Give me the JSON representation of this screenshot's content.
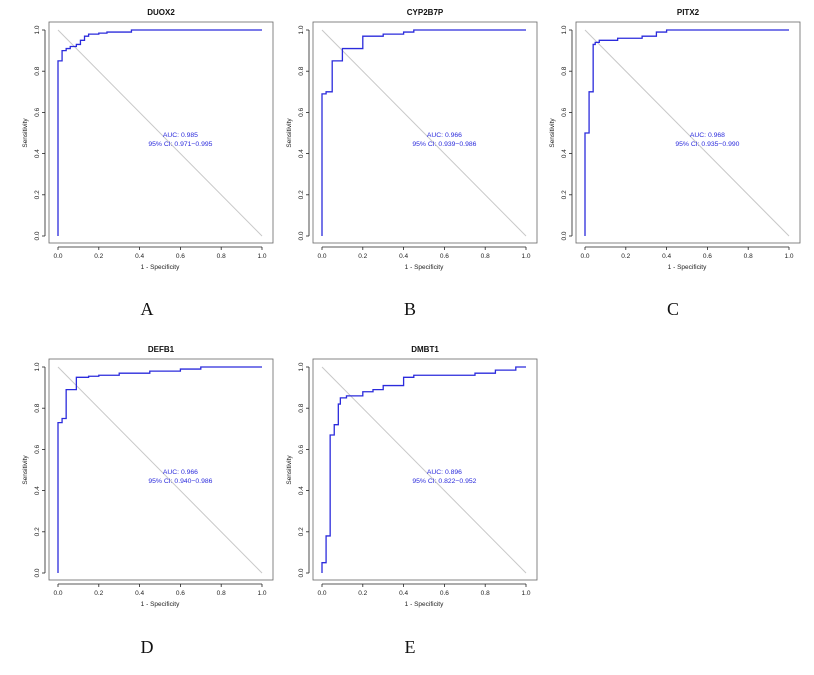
{
  "figure": {
    "letters": [
      "A",
      "B",
      "C",
      "D",
      "E"
    ]
  },
  "colors": {
    "roc_line": "#2b2bdc",
    "diagonal": "#c8c8c8",
    "annotation": "#2b2bdc",
    "axis": "#222222",
    "box": "#666666"
  },
  "chart_data": [
    {
      "type": "line",
      "title": "DUOX2",
      "xlabel": "1 - Specificity",
      "ylabel": "Sensitivity",
      "xlim": [
        0,
        1
      ],
      "ylim": [
        0,
        1
      ],
      "xticks": [
        "0.0",
        "0.2",
        "0.4",
        "0.6",
        "0.8",
        "1.0"
      ],
      "yticks": [
        "0.0",
        "0.2",
        "0.4",
        "0.6",
        "0.8",
        "1.0"
      ],
      "auc_label": "AUC: 0.985",
      "ci_label": "95% CI: 0.971−0.995",
      "series": [
        {
          "name": "ROC",
          "x": [
            0,
            0,
            0.02,
            0.02,
            0.04,
            0.04,
            0.06,
            0.06,
            0.09,
            0.09,
            0.11,
            0.11,
            0.13,
            0.13,
            0.15,
            0.15,
            0.2,
            0.2,
            0.24,
            0.24,
            0.36,
            0.36,
            1.0
          ],
          "y": [
            0,
            0.85,
            0.85,
            0.9,
            0.9,
            0.91,
            0.91,
            0.92,
            0.92,
            0.93,
            0.93,
            0.95,
            0.95,
            0.97,
            0.97,
            0.98,
            0.98,
            0.985,
            0.985,
            0.99,
            0.99,
            1.0,
            1.0
          ]
        }
      ]
    },
    {
      "type": "line",
      "title": "CYP2B7P",
      "xlabel": "1 - Specificity",
      "ylabel": "Sensitivity",
      "xlim": [
        0,
        1
      ],
      "ylim": [
        0,
        1
      ],
      "xticks": [
        "0.0",
        "0.2",
        "0.4",
        "0.6",
        "0.8",
        "1.0"
      ],
      "yticks": [
        "0.0",
        "0.2",
        "0.4",
        "0.6",
        "0.8",
        "1.0"
      ],
      "auc_label": "AUC: 0.966",
      "ci_label": "95% CI: 0.939−0.986",
      "series": [
        {
          "name": "ROC",
          "x": [
            0,
            0,
            0.02,
            0.02,
            0.05,
            0.05,
            0.1,
            0.1,
            0.2,
            0.2,
            0.3,
            0.3,
            0.4,
            0.4,
            0.45,
            0.45,
            1.0
          ],
          "y": [
            0,
            0.69,
            0.69,
            0.7,
            0.7,
            0.85,
            0.85,
            0.91,
            0.91,
            0.97,
            0.97,
            0.98,
            0.98,
            0.99,
            0.99,
            1.0,
            1.0
          ]
        }
      ]
    },
    {
      "type": "line",
      "title": "PITX2",
      "xlabel": "1 - Specificity",
      "ylabel": "Sensitivity",
      "xlim": [
        0,
        1
      ],
      "ylim": [
        0,
        1
      ],
      "xticks": [
        "0.0",
        "0.2",
        "0.4",
        "0.6",
        "0.8",
        "1.0"
      ],
      "yticks": [
        "0.0",
        "0.2",
        "0.4",
        "0.6",
        "0.8",
        "1.0"
      ],
      "auc_label": "AUC: 0.968",
      "ci_label": "95% CI: 0.935−0.990",
      "series": [
        {
          "name": "ROC",
          "x": [
            0,
            0,
            0.02,
            0.02,
            0.04,
            0.04,
            0.05,
            0.05,
            0.07,
            0.07,
            0.16,
            0.16,
            0.28,
            0.28,
            0.35,
            0.35,
            0.4,
            0.4,
            1.0
          ],
          "y": [
            0,
            0.5,
            0.5,
            0.7,
            0.7,
            0.93,
            0.93,
            0.94,
            0.94,
            0.95,
            0.95,
            0.96,
            0.96,
            0.97,
            0.97,
            0.99,
            0.99,
            1.0,
            1.0
          ]
        }
      ]
    },
    {
      "type": "line",
      "title": "DEFB1",
      "xlabel": "1 - Specificity",
      "ylabel": "Sensitivity",
      "xlim": [
        0,
        1
      ],
      "ylim": [
        0,
        1
      ],
      "xticks": [
        "0.0",
        "0.2",
        "0.4",
        "0.6",
        "0.8",
        "1.0"
      ],
      "yticks": [
        "0.0",
        "0.2",
        "0.4",
        "0.6",
        "0.8",
        "1.0"
      ],
      "auc_label": "AUC: 0.966",
      "ci_label": "95% CI: 0.940−0.986",
      "series": [
        {
          "name": "ROC",
          "x": [
            0,
            0,
            0.02,
            0.02,
            0.04,
            0.04,
            0.09,
            0.09,
            0.15,
            0.15,
            0.2,
            0.2,
            0.3,
            0.3,
            0.45,
            0.45,
            0.6,
            0.6,
            0.7,
            0.7,
            1.0
          ],
          "y": [
            0,
            0.73,
            0.73,
            0.75,
            0.75,
            0.89,
            0.89,
            0.95,
            0.95,
            0.955,
            0.955,
            0.96,
            0.96,
            0.97,
            0.97,
            0.98,
            0.98,
            0.99,
            0.99,
            1.0,
            1.0
          ]
        }
      ]
    },
    {
      "type": "line",
      "title": "DMBT1",
      "xlabel": "1 - Specificity",
      "ylabel": "Sensitivity",
      "xlim": [
        0,
        1
      ],
      "ylim": [
        0,
        1
      ],
      "xticks": [
        "0.0",
        "0.2",
        "0.4",
        "0.6",
        "0.8",
        "1.0"
      ],
      "yticks": [
        "0.0",
        "0.2",
        "0.4",
        "0.6",
        "0.8",
        "1.0"
      ],
      "auc_label": "AUC: 0.896",
      "ci_label": "95% CI: 0.822−0.952",
      "series": [
        {
          "name": "ROC",
          "x": [
            0,
            0,
            0.02,
            0.02,
            0.04,
            0.04,
            0.06,
            0.06,
            0.08,
            0.08,
            0.09,
            0.09,
            0.12,
            0.12,
            0.2,
            0.2,
            0.25,
            0.25,
            0.3,
            0.3,
            0.4,
            0.4,
            0.45,
            0.45,
            0.75,
            0.75,
            0.85,
            0.85,
            0.95,
            0.95,
            1.0
          ],
          "y": [
            0,
            0.05,
            0.05,
            0.18,
            0.18,
            0.67,
            0.67,
            0.72,
            0.72,
            0.82,
            0.82,
            0.85,
            0.85,
            0.86,
            0.86,
            0.88,
            0.88,
            0.89,
            0.89,
            0.91,
            0.91,
            0.95,
            0.95,
            0.96,
            0.96,
            0.97,
            0.97,
            0.985,
            0.985,
            1.0,
            1.0
          ]
        }
      ]
    }
  ]
}
